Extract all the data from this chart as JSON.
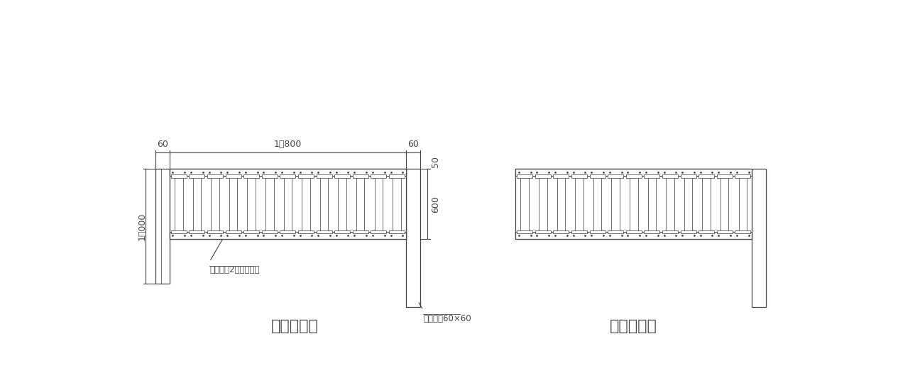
{
  "bg_color": "#ffffff",
  "line_color": "#444444",
  "lw": 0.9,
  "title_left": "基本セット",
  "title_right": "連結セット",
  "label_unit": "やまと塀2型ユニット",
  "label_post": "アルミ柱60×60",
  "dim_60": "60",
  "dim_1800": "1，800",
  "dim_600": "600",
  "dim_1000": "1．000",
  "dim_50": "50",
  "font_size_title": 16,
  "font_size_dim": 9,
  "font_size_label": 8.5,
  "n_slats_basic": 13,
  "n_slats_renketsu": 13
}
